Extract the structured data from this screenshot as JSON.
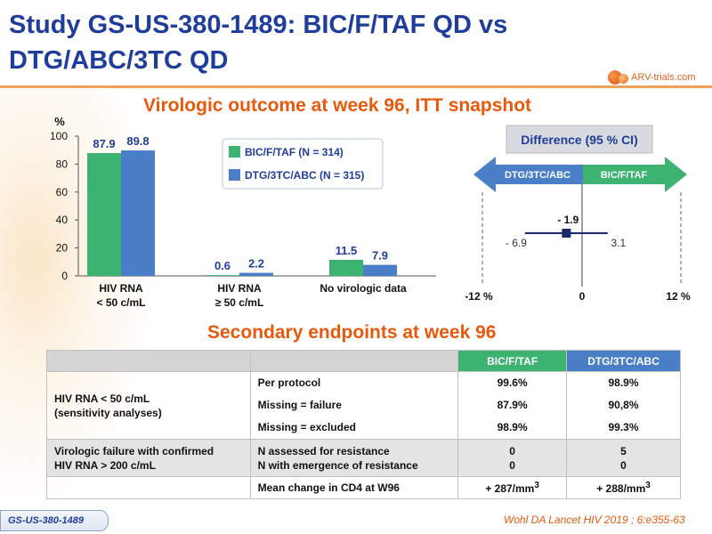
{
  "title": "Study GS-US-380-1489: BIC/F/TAF QD vs DTG/ABC/3TC QD",
  "logo_text": "ARV-trials.com",
  "chart_data": {
    "type": "bar",
    "title": "Virologic outcome at week 96, ITT snapshot",
    "ylabel": "%",
    "ylim": [
      0,
      100
    ],
    "yticks": [
      "0",
      "20",
      "40",
      "60",
      "80",
      "100"
    ],
    "categories": [
      {
        "line1": "HIV RNA",
        "line2": "< 50 c/mL"
      },
      {
        "line1": "HIV RNA",
        "line2": "≥ 50 c/mL"
      },
      {
        "line1": "No virologic data",
        "line2": ""
      }
    ],
    "series": [
      {
        "name": "BIC/F/TAF (N = 314)",
        "color": "#3cb371",
        "values": [
          87.9,
          0.6,
          11.5
        ],
        "labels": [
          "87.9",
          "0.6",
          "11.5"
        ]
      },
      {
        "name": "DTG/3TC/ABC (N = 315)",
        "color": "#4a7fc7",
        "values": [
          89.8,
          2.2,
          7.9
        ],
        "labels": [
          "89.8",
          "2.2",
          "7.9"
        ]
      }
    ],
    "legend_position": "top-right"
  },
  "difference": {
    "title": "Difference (95 % CI)",
    "left_arrow": "DTG/3TC/ABC",
    "right_arrow": "BIC/F/TAF",
    "point": -1.9,
    "lower": -6.9,
    "upper": 3.1,
    "point_label": "- 1.9",
    "lower_label": "- 6.9",
    "upper_label": "3.1",
    "range": [
      -12,
      12
    ],
    "axis_labels": [
      "-12 %",
      "0",
      "12 %"
    ]
  },
  "secondary": {
    "title": "Secondary endpoints at week 96",
    "col1": "BIC/F/TAF",
    "col2": "DTG/3TC/ABC",
    "group1_label1": "HIV RNA < 50 c/mL",
    "group1_label2": "(sensitivity analyses)",
    "g1_rows": [
      {
        "label": "Per protocol",
        "v1": "99.6%",
        "v2": "98.9%"
      },
      {
        "label": "Missing = failure",
        "v1": "87.9%",
        "v2": "90,8%"
      },
      {
        "label": "Missing = excluded",
        "v1": "98.9%",
        "v2": "99.3%"
      }
    ],
    "group2_label1": "Virologic failure with confirmed",
    "group2_label2": "HIV RNA > 200 c/mL",
    "g2_sub1": "N assessed for resistance",
    "g2_sub2": "N with emergence of resistance",
    "g2_v1a": "0",
    "g2_v1b": "0",
    "g2_v2a": "5",
    "g2_v2b": "0",
    "cd4_label": "Mean change in CD4 at W96",
    "cd4_v1": "+ 287/mm",
    "cd4_v2": "+ 288/mm",
    "cd4_sup": "3"
  },
  "footer": {
    "badge": "GS-US-380-1489",
    "citation": "Wohl DA Lancet HIV 2019 ; 6:e355-63"
  }
}
